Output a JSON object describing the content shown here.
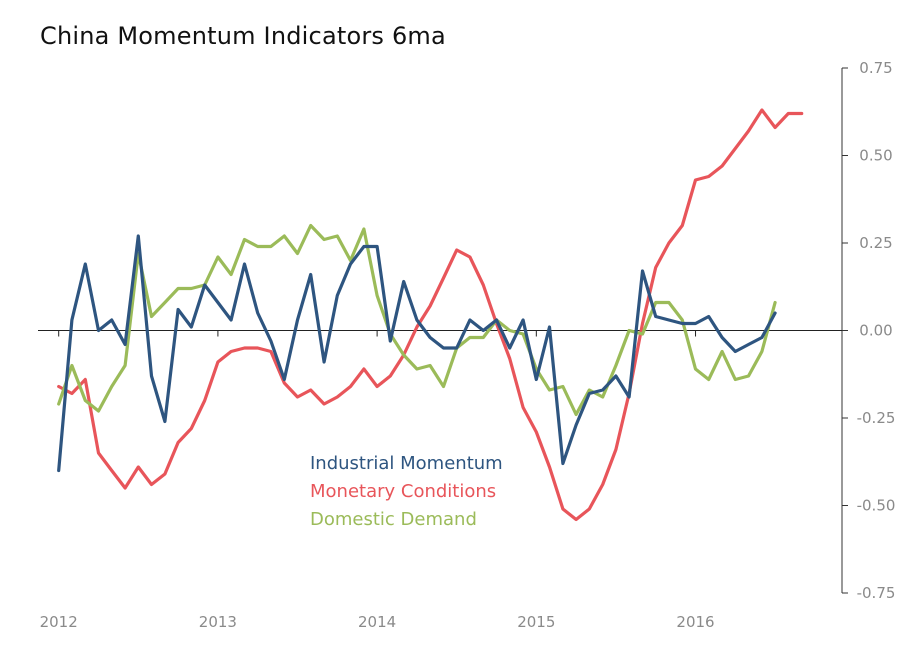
{
  "chart_data": {
    "type": "line",
    "title": "China Momentum Indicators 6ma",
    "xlabel": "",
    "ylabel": "",
    "ylim": [
      -0.75,
      0.75
    ],
    "y_axis_position": "right",
    "y_ticks": [
      0.75,
      0.5,
      0.25,
      0,
      -0.25,
      -0.5,
      -0.75
    ],
    "y_tick_labels": [
      "0.75",
      "0.50",
      "0.25",
      "0.00",
      "-0.25",
      "-0.50",
      "-0.75"
    ],
    "x_ticks": [
      2012,
      2013,
      2014,
      2015,
      2016
    ],
    "x_tick_labels": [
      "2012",
      "2013",
      "2014",
      "2015",
      "2016"
    ],
    "xlim": [
      2011.87,
      2016.92
    ],
    "grid": false,
    "legend_position": "center-bottom",
    "series": [
      {
        "name": "Industrial Momentum",
        "color": "#2e5580",
        "x": [
          2012.0,
          2012.083,
          2012.167,
          2012.25,
          2012.333,
          2012.417,
          2012.5,
          2012.583,
          2012.667,
          2012.75,
          2012.833,
          2012.917,
          2013.0,
          2013.083,
          2013.167,
          2013.25,
          2013.333,
          2013.417,
          2013.5,
          2013.583,
          2013.667,
          2013.75,
          2013.833,
          2013.917,
          2014.0,
          2014.083,
          2014.167,
          2014.25,
          2014.333,
          2014.417,
          2014.5,
          2014.583,
          2014.667,
          2014.75,
          2014.833,
          2014.917,
          2015.0,
          2015.083,
          2015.167,
          2015.25,
          2015.333,
          2015.417,
          2015.5,
          2015.583,
          2015.667,
          2015.75,
          2015.833,
          2015.917,
          2016.0,
          2016.083,
          2016.167,
          2016.25,
          2016.333,
          2016.417,
          2016.5
        ],
        "values": [
          -0.4,
          0.03,
          0.19,
          0.0,
          0.03,
          -0.04,
          0.27,
          -0.13,
          -0.26,
          0.06,
          0.01,
          0.13,
          0.08,
          0.03,
          0.19,
          0.05,
          -0.03,
          -0.14,
          0.03,
          0.16,
          -0.09,
          0.1,
          0.19,
          0.24,
          0.24,
          -0.03,
          0.14,
          0.03,
          -0.02,
          -0.05,
          -0.05,
          0.03,
          0.0,
          0.03,
          -0.05,
          0.03,
          -0.14,
          0.01,
          -0.38,
          -0.27,
          -0.18,
          -0.17,
          -0.13,
          -0.19,
          0.17,
          0.04,
          0.03,
          0.02,
          0.02,
          0.04,
          -0.02,
          -0.06,
          -0.04,
          -0.02,
          0.05
        ]
      },
      {
        "name": "Monetary Conditions",
        "color": "#e8555a",
        "x": [
          2012.0,
          2012.083,
          2012.167,
          2012.25,
          2012.333,
          2012.417,
          2012.5,
          2012.583,
          2012.667,
          2012.75,
          2012.833,
          2012.917,
          2013.0,
          2013.083,
          2013.167,
          2013.25,
          2013.333,
          2013.417,
          2013.5,
          2013.583,
          2013.667,
          2013.75,
          2013.833,
          2013.917,
          2014.0,
          2014.083,
          2014.167,
          2014.25,
          2014.333,
          2014.417,
          2014.5,
          2014.583,
          2014.667,
          2014.75,
          2014.833,
          2014.917,
          2015.0,
          2015.083,
          2015.167,
          2015.25,
          2015.333,
          2015.417,
          2015.5,
          2015.583,
          2015.667,
          2015.75,
          2015.833,
          2015.917,
          2016.0,
          2016.083,
          2016.167,
          2016.25,
          2016.333,
          2016.417,
          2016.5,
          2016.583,
          2016.667
        ],
        "values": [
          -0.16,
          -0.18,
          -0.14,
          -0.35,
          -0.4,
          -0.45,
          -0.39,
          -0.44,
          -0.41,
          -0.32,
          -0.28,
          -0.2,
          -0.09,
          -0.06,
          -0.05,
          -0.05,
          -0.06,
          -0.15,
          -0.19,
          -0.17,
          -0.21,
          -0.19,
          -0.16,
          -0.11,
          -0.16,
          -0.13,
          -0.07,
          0.01,
          0.07,
          0.15,
          0.23,
          0.21,
          0.13,
          0.02,
          -0.08,
          -0.22,
          -0.29,
          -0.39,
          -0.51,
          -0.54,
          -0.51,
          -0.44,
          -0.34,
          -0.18,
          0.02,
          0.18,
          0.25,
          0.3,
          0.43,
          0.44,
          0.47,
          0.52,
          0.57,
          0.63,
          0.58,
          0.62,
          0.62
        ]
      },
      {
        "name": "Domestic Demand",
        "color": "#9bbb59",
        "x": [
          2012.0,
          2012.083,
          2012.167,
          2012.25,
          2012.333,
          2012.417,
          2012.5,
          2012.583,
          2012.667,
          2012.75,
          2012.833,
          2012.917,
          2013.0,
          2013.083,
          2013.167,
          2013.25,
          2013.333,
          2013.417,
          2013.5,
          2013.583,
          2013.667,
          2013.75,
          2013.833,
          2013.917,
          2014.0,
          2014.083,
          2014.167,
          2014.25,
          2014.333,
          2014.417,
          2014.5,
          2014.583,
          2014.667,
          2014.75,
          2014.833,
          2014.917,
          2015.0,
          2015.083,
          2015.167,
          2015.25,
          2015.333,
          2015.417,
          2015.5,
          2015.583,
          2015.667,
          2015.75,
          2015.833,
          2015.917,
          2016.0,
          2016.083,
          2016.167,
          2016.25,
          2016.333,
          2016.417,
          2016.5
        ],
        "values": [
          -0.21,
          -0.1,
          -0.2,
          -0.23,
          -0.16,
          -0.1,
          0.22,
          0.04,
          0.08,
          0.12,
          0.12,
          0.13,
          0.21,
          0.16,
          0.26,
          0.24,
          0.24,
          0.27,
          0.22,
          0.3,
          0.26,
          0.27,
          0.2,
          0.29,
          0.1,
          -0.01,
          -0.07,
          -0.11,
          -0.1,
          -0.16,
          -0.05,
          -0.02,
          -0.02,
          0.03,
          0.0,
          -0.01,
          -0.11,
          -0.17,
          -0.16,
          -0.24,
          -0.17,
          -0.19,
          -0.1,
          0.0,
          -0.01,
          0.08,
          0.08,
          0.03,
          -0.11,
          -0.14,
          -0.06,
          -0.14,
          -0.13,
          -0.06,
          0.08
        ]
      }
    ]
  }
}
